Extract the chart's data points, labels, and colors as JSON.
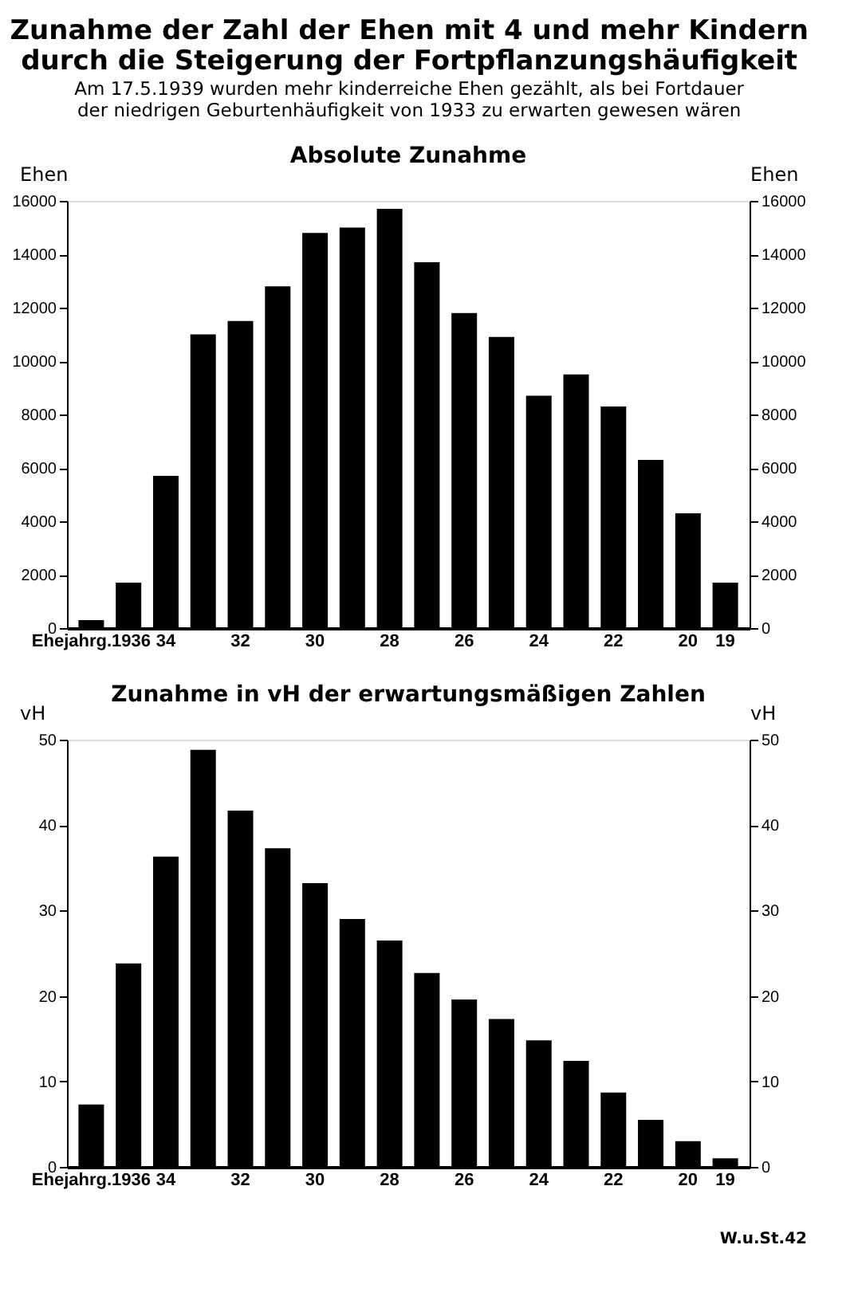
{
  "chart_data": [
    {
      "type": "bar",
      "title": [
        "Zunahme der Zahl der Ehen mit 4 und mehr Kindern",
        "durch die Steigerung der Fortpflanzungshäufigkeit"
      ],
      "subtitle": [
        "Am 17.5.1939 wurden mehr kinderreiche Ehen gezählt, als bei Fortdauer",
        "der niedrigen Geburtenhäufigkeit von 1933 zu erwarten gewesen wären"
      ],
      "xlabel": "Absolute Zunahme",
      "ylabel": "Ehen",
      "y2label": "Ehen",
      "categories": [
        "Ehejahrg.1936",
        null,
        "34",
        null,
        "32",
        null,
        "30",
        null,
        "28",
        null,
        "26",
        null,
        "24",
        null,
        "22",
        null,
        "20",
        "19"
      ],
      "values": [
        300,
        1700,
        5700,
        11000,
        11500,
        12800,
        14800,
        15000,
        15700,
        13700,
        11800,
        10900,
        8700,
        9500,
        8300,
        6300,
        4300,
        1700
      ],
      "color": "#000000",
      "ylim": [
        0,
        16000
      ],
      "yticks": [
        0,
        2000,
        4000,
        6000,
        8000,
        10000,
        12000,
        14000,
        16000
      ],
      "y2lim": [
        0,
        16000
      ],
      "y2ticks": [
        0,
        2000,
        4000,
        6000,
        8000,
        10000,
        12000,
        14000,
        16000
      ],
      "grid": false
    },
    {
      "type": "bar",
      "xlabel": "Zunahme in vH der erwartungsmäßigen Zahlen",
      "ylabel": "vH",
      "y2label": "vH",
      "categories": [
        "Ehejahrg.1936",
        null,
        "34",
        null,
        "32",
        null,
        "30",
        null,
        "28",
        null,
        "26",
        null,
        "24",
        null,
        "22",
        null,
        "20",
        "19"
      ],
      "values": [
        7.3,
        23.8,
        36.3,
        48.8,
        41.7,
        37.3,
        33.2,
        29.0,
        26.5,
        22.7,
        19.6,
        17.3,
        14.8,
        12.4,
        8.7,
        5.5,
        3.0,
        1.0
      ],
      "color": "#000000",
      "ylim": [
        0,
        50
      ],
      "yticks": [
        0,
        10,
        20,
        30,
        40,
        50
      ],
      "y2lim": [
        0,
        50
      ],
      "y2ticks": [
        0,
        10,
        20,
        30,
        40,
        50
      ],
      "grid": false,
      "annotations": [
        "W.u.St.42"
      ]
    }
  ]
}
